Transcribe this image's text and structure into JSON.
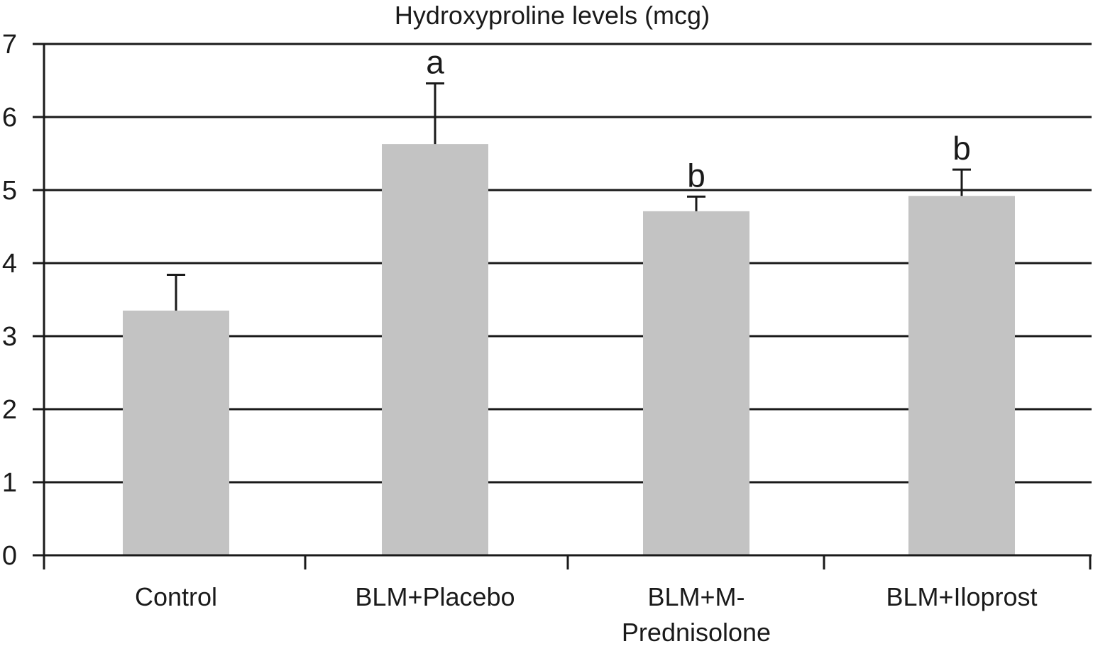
{
  "chart_data": {
    "type": "bar",
    "title": "Hydroxyproline levels (mcg)",
    "xlabel": "",
    "ylabel": "",
    "ylim": [
      0,
      7
    ],
    "yticks": [
      0,
      1,
      2,
      3,
      4,
      5,
      6,
      7
    ],
    "grid": true,
    "categories": [
      [
        "Control"
      ],
      [
        "BLM+Placebo"
      ],
      [
        "BLM+M-",
        "Prednisolone"
      ],
      [
        "BLM+Iloprost"
      ]
    ],
    "values": [
      3.35,
      5.63,
      4.71,
      4.92
    ],
    "error_upper": [
      0.49,
      0.83,
      0.2,
      0.36
    ],
    "annotations": [
      "",
      "a",
      "b",
      "b"
    ],
    "colors": {
      "bar": "#c3c3c3",
      "axis": "#1a1a1a",
      "grid": "#1a1a1a"
    }
  }
}
